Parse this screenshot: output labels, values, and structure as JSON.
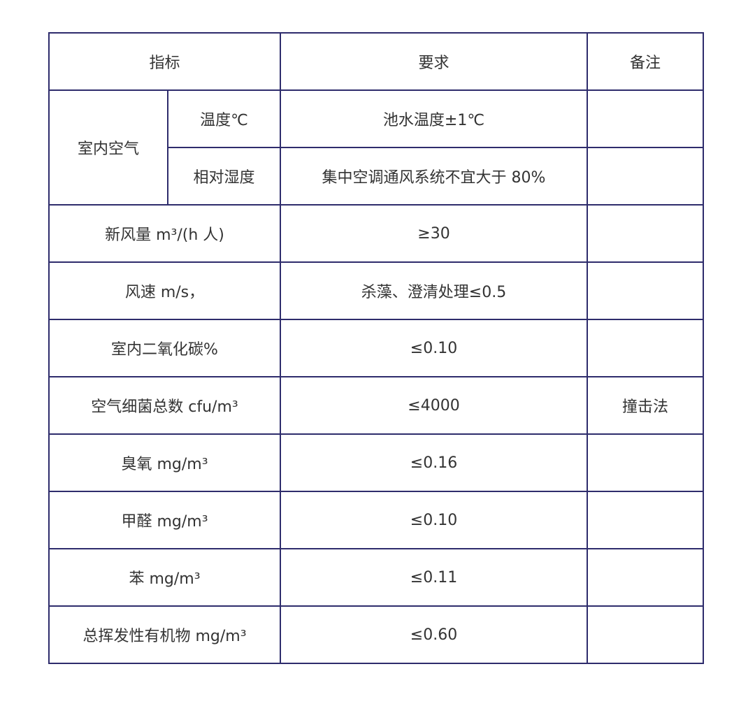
{
  "header": {
    "indicator": "指标",
    "requirement": "要求",
    "remark": "备注"
  },
  "indoor_air": {
    "group_label": "室内空气",
    "rows": [
      {
        "indicator": "温度℃",
        "requirement": "池水温度±1℃",
        "remark": ""
      },
      {
        "indicator": "相对湿度",
        "requirement": "集中空调通风系统不宜大于 80%",
        "remark": ""
      }
    ]
  },
  "rows": [
    {
      "indicator": "新风量 m³/(h 人)",
      "requirement": "≥30",
      "remark": ""
    },
    {
      "indicator": "风速 m/s，",
      "requirement": "杀藻、澄清处理≤0.5",
      "remark": ""
    },
    {
      "indicator": "室内二氧化碳%",
      "requirement": "≤0.10",
      "remark": ""
    },
    {
      "indicator": "空气细菌总数 cfu/m³",
      "requirement": "≤4000",
      "remark": "撞击法"
    },
    {
      "indicator": "臭氧 mg/m³",
      "requirement": "≤0.16",
      "remark": ""
    },
    {
      "indicator": "甲醛 mg/m³",
      "requirement": "≤0.10",
      "remark": ""
    },
    {
      "indicator": "苯 mg/m³",
      "requirement": "≤0.11",
      "remark": ""
    },
    {
      "indicator": "总挥发性有机物 mg/m³",
      "requirement": "≤0.60",
      "remark": ""
    }
  ]
}
